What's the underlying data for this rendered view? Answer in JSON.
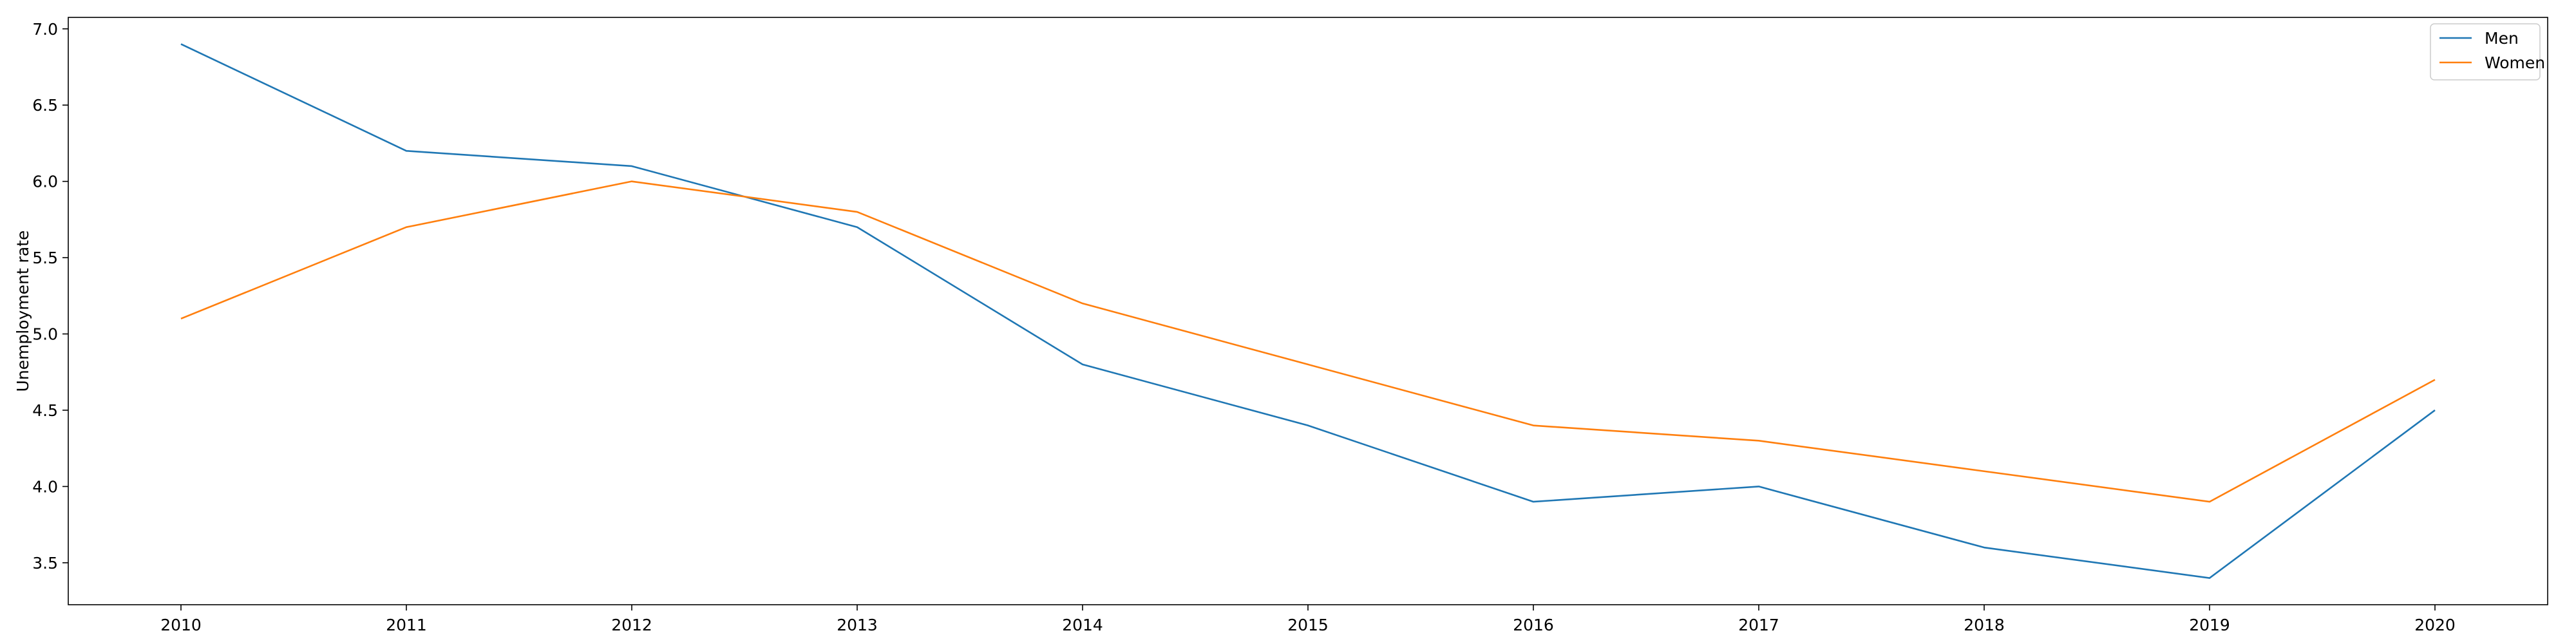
{
  "chart_data": {
    "type": "line",
    "title": "",
    "xlabel": "",
    "ylabel": "Unemployment rate",
    "x": [
      2010,
      2011,
      2012,
      2013,
      2014,
      2015,
      2016,
      2017,
      2018,
      2019,
      2020
    ],
    "x_tick_labels": [
      "2010",
      "2011",
      "2012",
      "2013",
      "2014",
      "2015",
      "2016",
      "2017",
      "2018",
      "2019",
      "2020"
    ],
    "y_ticks": [
      3.5,
      4.0,
      4.5,
      5.0,
      5.5,
      6.0,
      6.5,
      7.0
    ],
    "y_tick_labels": [
      "3.5",
      "4.0",
      "4.5",
      "5.0",
      "5.5",
      "6.0",
      "6.5",
      "7.0"
    ],
    "xlim": [
      2009.5,
      2020.5
    ],
    "ylim": [
      3.225,
      7.075
    ],
    "grid": false,
    "legend_position": "top-right",
    "series": [
      {
        "name": "Men",
        "color": "#1f77b4",
        "values": [
          6.9,
          6.2,
          6.1,
          5.7,
          4.8,
          4.4,
          3.9,
          4.0,
          3.6,
          3.4,
          4.5
        ]
      },
      {
        "name": "Women",
        "color": "#ff7f0e",
        "values": [
          5.1,
          5.7,
          6.0,
          5.8,
          5.2,
          4.8,
          4.4,
          4.3,
          4.1,
          3.9,
          4.7
        ]
      }
    ]
  }
}
